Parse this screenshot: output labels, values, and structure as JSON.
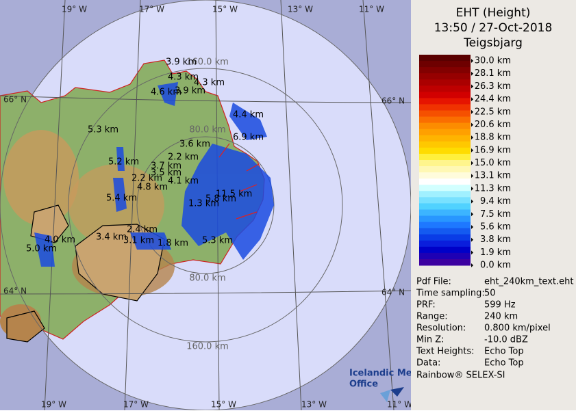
{
  "header": {
    "title": "EHT (Height)",
    "datetime": "13:50 / 27-Oct-2018",
    "site": "Teigsbjarg"
  },
  "legend": {
    "labels": [
      "30.0 km",
      "28.1 km",
      "26.3 km",
      "24.4 km",
      "22.5 km",
      "20.6 km",
      "18.8 km",
      "16.9 km",
      "15.0 km",
      "13.1 km",
      "11.3 km",
      "9.4 km",
      "7.5 km",
      "5.6 km",
      "3.8 km",
      "1.9 km",
      "0.0 km"
    ],
    "colors": [
      "#5a0000",
      "#6e0000",
      "#820000",
      "#960000",
      "#aa0000",
      "#be0000",
      "#d20000",
      "#e61400",
      "#f03200",
      "#f55000",
      "#fa6e00",
      "#fc8c00",
      "#ffa000",
      "#ffb400",
      "#ffc800",
      "#ffdc00",
      "#fff03c",
      "#fff58c",
      "#fff8b4",
      "#fffcdc",
      "#ffffff",
      "#d2ffff",
      "#a0f0ff",
      "#78e1ff",
      "#50d2ff",
      "#3cb4ff",
      "#2896ff",
      "#1e78ff",
      "#145af0",
      "#0a3ce6",
      "#0a1edc",
      "#0000c8",
      "#1e00b4",
      "#3c00a0"
    ]
  },
  "map": {
    "lon_top": [
      "19° W",
      "17° W",
      "15° W",
      "13° W",
      "11° W"
    ],
    "lon_bottom": [
      "19° W",
      "17° W",
      "15° W",
      "13° W",
      "11° W"
    ],
    "lat_left": [
      "66° N",
      "64° N"
    ],
    "lat_right": [
      "66° N",
      "64° N"
    ],
    "rings": [
      "160.0 km",
      "80.0 km",
      "80.0 km",
      "160.0 km"
    ],
    "echo_labels": [
      "3.9 km",
      "4.3 km",
      "4.3 km",
      "4.6 km",
      "3.9 km",
      "4.4 km",
      "5.3 km",
      "6.9 km",
      "3.6 km",
      "2.2 km",
      "5.2 km",
      "3.7 km",
      "3.5 km",
      "2.2 km",
      "4.1 km",
      "4.8 km",
      "11.5 km",
      "5.4 km",
      "5.8 km",
      "1.3 km",
      "2.4 km",
      "3.4 km",
      "4.0 km",
      "3.1 km",
      "1.8 km",
      "5.3 km",
      "5.0 km"
    ],
    "logo": [
      "Icelandic Met",
      "Office"
    ]
  },
  "info": [
    [
      "Pdf File:",
      "eht_240km_text.eht"
    ],
    [
      "Time sampling:",
      "50"
    ],
    [
      "PRF:",
      "599 Hz"
    ],
    [
      "Range:",
      "240 km"
    ],
    [
      "Resolution:",
      "0.800 km/pixel"
    ],
    [
      "Min Z:",
      "-10.0 dBZ"
    ],
    [
      "Text Heights:",
      "Echo Top"
    ],
    [
      "Data:",
      "Echo Top"
    ]
  ],
  "footer": "Rainbow® SELEX-SI"
}
